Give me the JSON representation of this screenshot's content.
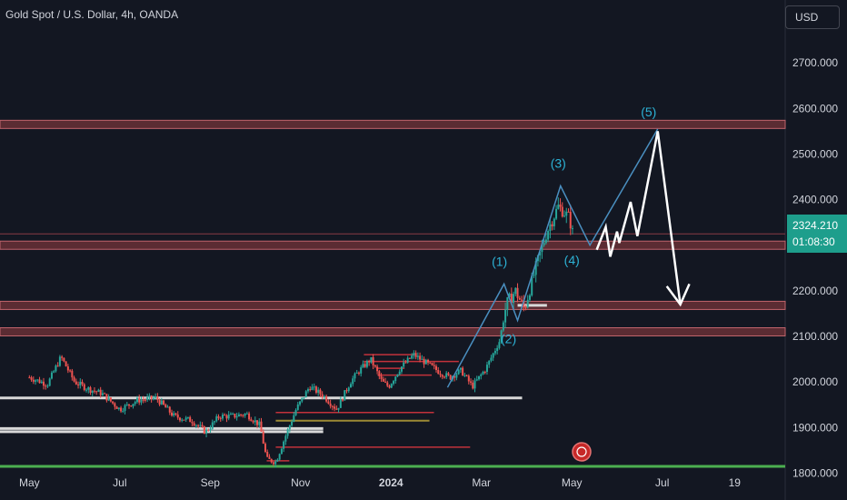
{
  "header": {
    "title": "Gold Spot / U.S. Dollar, 4h, OANDA",
    "currency_button": "USD"
  },
  "price_tag": {
    "price": "2324.210",
    "countdown": "01:08:30"
  },
  "colors": {
    "background": "#131722",
    "up": "#26a69a",
    "down": "#ef5350",
    "zone": "#8a3b44",
    "white_line": "#d8d8d8",
    "gold_line": "#9c8a34",
    "green_line": "#4caf50",
    "wave": "#4a8fc0",
    "wave_label": "#2db3d6",
    "projection": "#ffffff",
    "price_tag": "#1e9e8c"
  },
  "chart_data": {
    "type": "candlestick",
    "title": "Gold Spot / U.S. Dollar, 4h, OANDA",
    "ylim": [
      1780,
      2790
    ],
    "y_ticks": [
      "2700.000",
      "2600.000",
      "2500.000",
      "2400.000",
      "2300.000",
      "2200.000",
      "2100.000",
      "2000.000",
      "1900.000",
      "1800.000"
    ],
    "x_ticks": [
      "May",
      "Jul",
      "Sep",
      "Nov",
      "2024",
      "Mar",
      "May",
      "Jul",
      "19"
    ],
    "x_tick_values": [
      0.0,
      2.0,
      4.0,
      6.0,
      8.0,
      10.0,
      12.0,
      14.0,
      15.6
    ],
    "x_range": [
      -0.65,
      16.72
    ],
    "last_month_index": 11.9,
    "price_path": [
      [
        0.0,
        2010
      ],
      [
        0.4,
        1995
      ],
      [
        0.7,
        2055
      ],
      [
        1.0,
        2000
      ],
      [
        1.3,
        1985
      ],
      [
        1.6,
        1975
      ],
      [
        2.0,
        1940
      ],
      [
        2.4,
        1960
      ],
      [
        2.8,
        1965
      ],
      [
        3.2,
        1925
      ],
      [
        3.6,
        1915
      ],
      [
        3.9,
        1890
      ],
      [
        4.2,
        1925
      ],
      [
        4.5,
        1925
      ],
      [
        4.8,
        1930
      ],
      [
        5.1,
        1905
      ],
      [
        5.25,
        1830
      ],
      [
        5.45,
        1825
      ],
      [
        5.7,
        1890
      ],
      [
        5.9,
        1940
      ],
      [
        6.2,
        1990
      ],
      [
        6.5,
        1970
      ],
      [
        6.8,
        1940
      ],
      [
        7.1,
        2000
      ],
      [
        7.3,
        2025
      ],
      [
        7.55,
        2050
      ],
      [
        7.8,
        2000
      ],
      [
        7.95,
        1990
      ],
      [
        8.2,
        2030
      ],
      [
        8.5,
        2060
      ],
      [
        8.8,
        2040
      ],
      [
        9.1,
        2020
      ],
      [
        9.3,
        2010
      ],
      [
        9.55,
        2025
      ],
      [
        9.8,
        1990
      ],
      [
        10.1,
        2030
      ],
      [
        10.4,
        2090
      ],
      [
        10.55,
        2170
      ],
      [
        10.75,
        2200
      ],
      [
        10.95,
        2160
      ],
      [
        11.2,
        2250
      ],
      [
        11.45,
        2330
      ],
      [
        11.7,
        2385
      ],
      [
        11.95,
        2360
      ],
      [
        12.0,
        2330
      ],
      [
        12.05,
        2324
      ]
    ],
    "levels": [
      {
        "type": "zone",
        "value": 2565,
        "x1": -0.65,
        "x2": 16.72
      },
      {
        "type": "zone",
        "value": 2300,
        "x1": -0.65,
        "x2": 16.72
      },
      {
        "type": "zone",
        "value": 2168,
        "x1": -0.65,
        "x2": 16.72
      },
      {
        "type": "zone",
        "value": 2110,
        "x1": -0.65,
        "x2": 16.72
      },
      {
        "type": "thin",
        "value": 2325,
        "x1": -0.65,
        "x2": 16.72
      },
      {
        "type": "white",
        "value": 1965,
        "x1": -0.65,
        "x2": 10.9
      },
      {
        "type": "white",
        "value": 1898,
        "x1": -0.65,
        "x2": 6.5
      },
      {
        "type": "white",
        "value": 1891,
        "x1": -0.65,
        "x2": 6.5
      },
      {
        "type": "white",
        "value": 2168,
        "x1": 10.8,
        "x2": 11.45
      },
      {
        "type": "gold",
        "value": 1915,
        "x1": 5.45,
        "x2": 8.85
      },
      {
        "type": "red",
        "value": 1933,
        "x1": 5.45,
        "x2": 8.95
      },
      {
        "type": "red",
        "value": 1857,
        "x1": 5.45,
        "x2": 9.75
      },
      {
        "type": "red",
        "value": 1827,
        "x1": 5.25,
        "x2": 5.75
      },
      {
        "type": "green",
        "value": 1815,
        "x1": -0.65,
        "x2": 16.72
      },
      {
        "type": "red",
        "value": 2060,
        "x1": 7.4,
        "x2": 8.5
      },
      {
        "type": "red",
        "value": 2045,
        "x1": 7.4,
        "x2": 8.8
      },
      {
        "type": "red",
        "value": 2030,
        "x1": 7.7,
        "x2": 8.3
      },
      {
        "type": "red",
        "value": 2015,
        "x1": 7.7,
        "x2": 8.9
      },
      {
        "type": "red",
        "value": 2045,
        "x1": 8.8,
        "x2": 9.5
      }
    ],
    "waves": [
      [
        9.25,
        1988
      ],
      [
        10.5,
        2215
      ],
      [
        10.8,
        2135
      ],
      [
        11.75,
        2430
      ],
      [
        12.4,
        2300
      ],
      [
        13.9,
        2555
      ]
    ],
    "wave_labels": [
      {
        "text": "(1)",
        "x": 10.4,
        "y": 2255
      },
      {
        "text": "(2)",
        "x": 10.6,
        "y": 2085
      },
      {
        "text": "(3)",
        "x": 11.7,
        "y": 2470
      },
      {
        "text": "(4)",
        "x": 12.0,
        "y": 2258
      },
      {
        "text": "(5)",
        "x": 13.7,
        "y": 2583
      }
    ],
    "projection": [
      [
        12.55,
        2290
      ],
      [
        12.75,
        2340
      ],
      [
        12.85,
        2275
      ],
      [
        13.0,
        2330
      ],
      [
        13.05,
        2305
      ],
      [
        13.3,
        2395
      ],
      [
        13.45,
        2320
      ],
      [
        13.9,
        2550
      ],
      [
        14.4,
        2170
      ]
    ],
    "arrow_head": [
      [
        14.1,
        2210
      ],
      [
        14.4,
        2170
      ],
      [
        14.6,
        2215
      ]
    ]
  }
}
